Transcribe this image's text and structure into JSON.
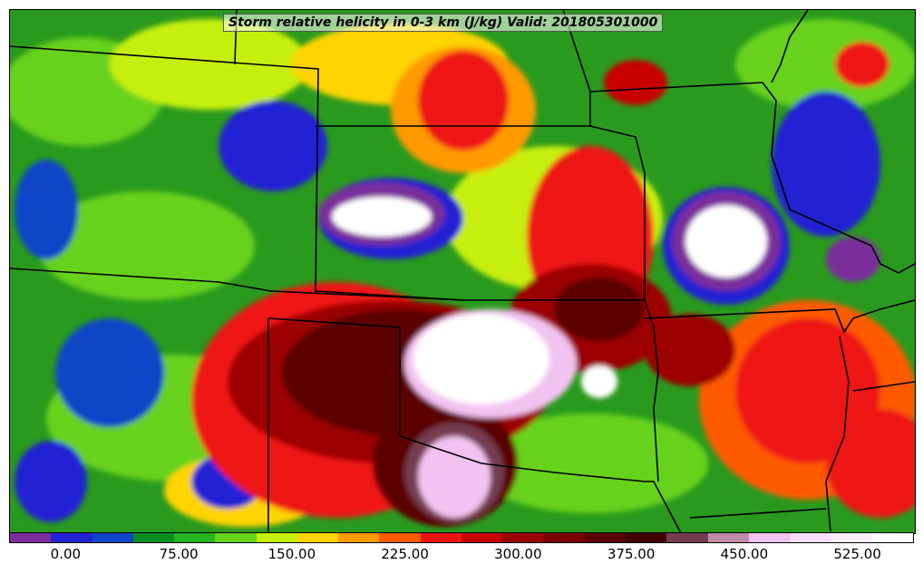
{
  "title": "Storm relative helicity in 0-3 km (J/kg) Valid: 201805301000",
  "map": {
    "field": "storm-relative helicity 0-3 km",
    "background_color": "#2a9a1e",
    "boundary_color": "#000000"
  },
  "colorbar": {
    "colors": [
      "#7a2e9c",
      "#2323d4",
      "#1146c8",
      "#0b8f1f",
      "#26b51f",
      "#66d21a",
      "#c6ef08",
      "#ffd400",
      "#ff9a00",
      "#ff5a00",
      "#ef1414",
      "#c80000",
      "#9c0000",
      "#7a0000",
      "#5c0000",
      "#420000",
      "#743c50",
      "#c08aa8",
      "#f2c2f0",
      "#f8dcf8",
      "#ffeeff",
      "#ffffff"
    ],
    "tick_labels": [
      "0.00",
      "75.00",
      "150.00",
      "225.00",
      "300.00",
      "375.00",
      "450.00",
      "525.00"
    ],
    "tick_values": [
      0,
      75,
      150,
      225,
      300,
      375,
      450,
      525
    ],
    "range": [
      -37.5,
      562.5
    ]
  }
}
